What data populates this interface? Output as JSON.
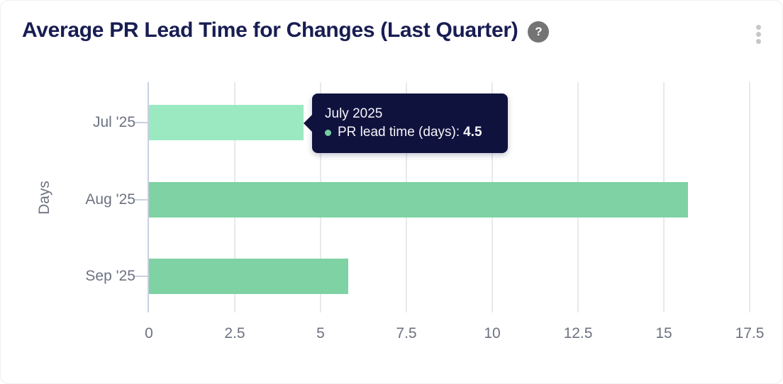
{
  "header": {
    "title": "Average PR Lead Time for Changes (Last Quarter)",
    "help_glyph": "?"
  },
  "chart_data": {
    "type": "bar",
    "orientation": "horizontal",
    "title": "Average PR Lead Time for Changes (Last Quarter)",
    "categories": [
      "Jul '25",
      "Aug '25",
      "Sep '25"
    ],
    "series": [
      {
        "name": "PR lead time (days)",
        "values": [
          4.5,
          15.7,
          5.8
        ]
      }
    ],
    "highlighted_index": 0,
    "xlabel": "",
    "ylabel": "Days",
    "xlim": [
      0,
      17.5
    ],
    "xticks": [
      0,
      2.5,
      5,
      7.5,
      10,
      12.5,
      15,
      17.5
    ],
    "grid": true,
    "legend": false,
    "colors": {
      "bar": "#7ED2A3",
      "bar_highlighted": "#9AE9C1",
      "tooltip_bg": "#10123E",
      "dot": "#72CFA2",
      "axis_line": "#C9D0E0",
      "gridline": "#E8E9EC",
      "label_text": "#6D7280",
      "title_text": "#181D52"
    }
  },
  "tooltip": {
    "title": "July 2025",
    "series_label": "PR lead time (days):",
    "value": "4.5"
  }
}
